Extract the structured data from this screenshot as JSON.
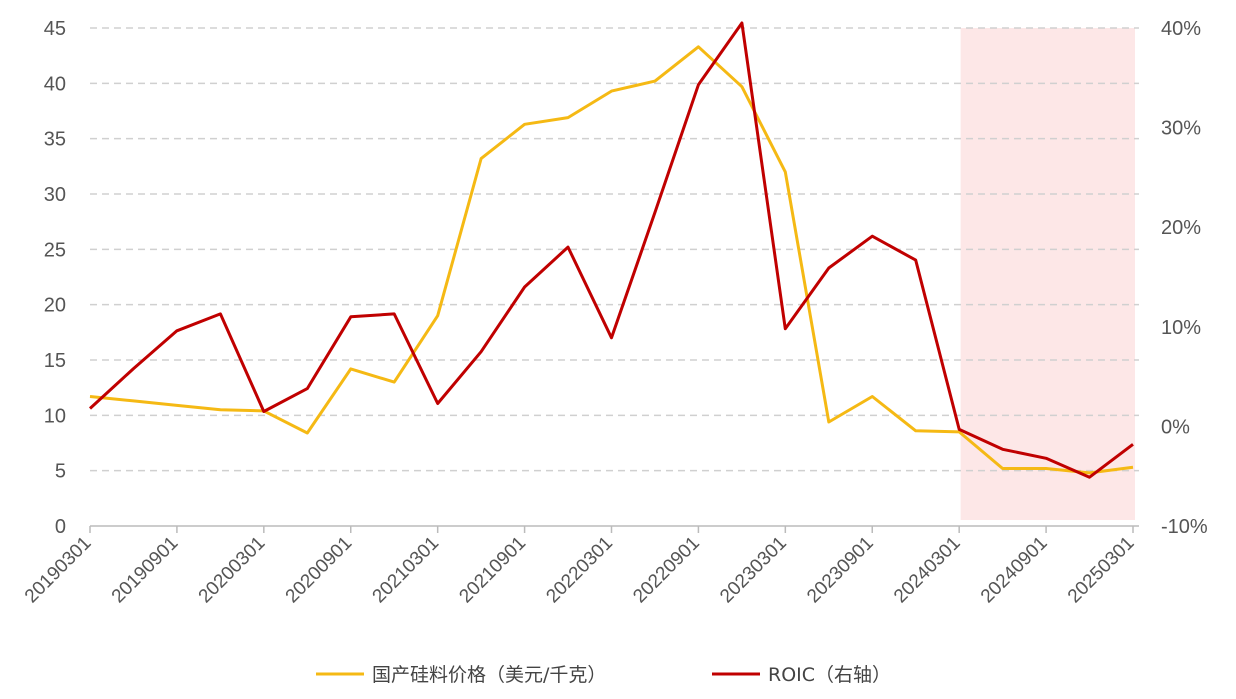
{
  "chart_data": {
    "type": "line",
    "x": [
      "20190301",
      "20190601",
      "20190901",
      "20191201",
      "20200301",
      "20200601",
      "20200901",
      "20201201",
      "20210301",
      "20210601",
      "20210901",
      "20211201",
      "20220301",
      "20220601",
      "20220901",
      "20221201",
      "20230301",
      "20230601",
      "20230901",
      "20231201",
      "20240301",
      "20240601",
      "20240901",
      "20241201",
      "20250301"
    ],
    "x_tick_labels": [
      "20190301",
      "20190901",
      "20200301",
      "20200901",
      "20210301",
      "20210901",
      "20220301",
      "20220901",
      "20230301",
      "20230901",
      "20240301",
      "20240901",
      "20250301"
    ],
    "series": [
      {
        "name": "国产硅料价格（美元/千克）",
        "axis": "left",
        "color": "#F5B914",
        "values": [
          11.7,
          11.3,
          10.9,
          10.5,
          10.4,
          8.4,
          14.2,
          13.0,
          19.0,
          33.2,
          36.3,
          36.9,
          39.3,
          40.2,
          43.3,
          39.7,
          32.0,
          9.4,
          11.7,
          8.6,
          8.5,
          5.2,
          5.2,
          4.8,
          5.3
        ]
      },
      {
        "name": "ROIC（右轴）",
        "axis": "right",
        "color": "#C00000",
        "values": [
          1.8,
          5.8,
          9.6,
          11.3,
          1.5,
          3.8,
          11.0,
          11.3,
          2.3,
          7.5,
          14.0,
          18.0,
          8.9,
          21.5,
          34.3,
          40.5,
          9.8,
          15.9,
          19.1,
          16.7,
          -0.3,
          -2.3,
          -3.2,
          -5.1,
          -1.8
        ]
      }
    ],
    "y_left": {
      "ticks": [
        "0",
        "5",
        "10",
        "15",
        "20",
        "25",
        "30",
        "35",
        "40",
        "45"
      ],
      "range": [
        0,
        45
      ]
    },
    "y_right": {
      "ticks": [
        "-10%",
        "0%",
        "10%",
        "20%",
        "30%",
        "40%"
      ],
      "range": [
        -10,
        40
      ]
    },
    "shaded_region": {
      "from": "20240601",
      "to": "20250301",
      "color": "#FDE7E7"
    },
    "grid": "horizontal-dashed",
    "legend_position": "bottom"
  },
  "colors": {
    "silicon": "#F5B914",
    "roic": "#C00000",
    "shade": "#FDE7E7",
    "grid": "#D0D0D0",
    "axis": "#BBBBBB"
  }
}
